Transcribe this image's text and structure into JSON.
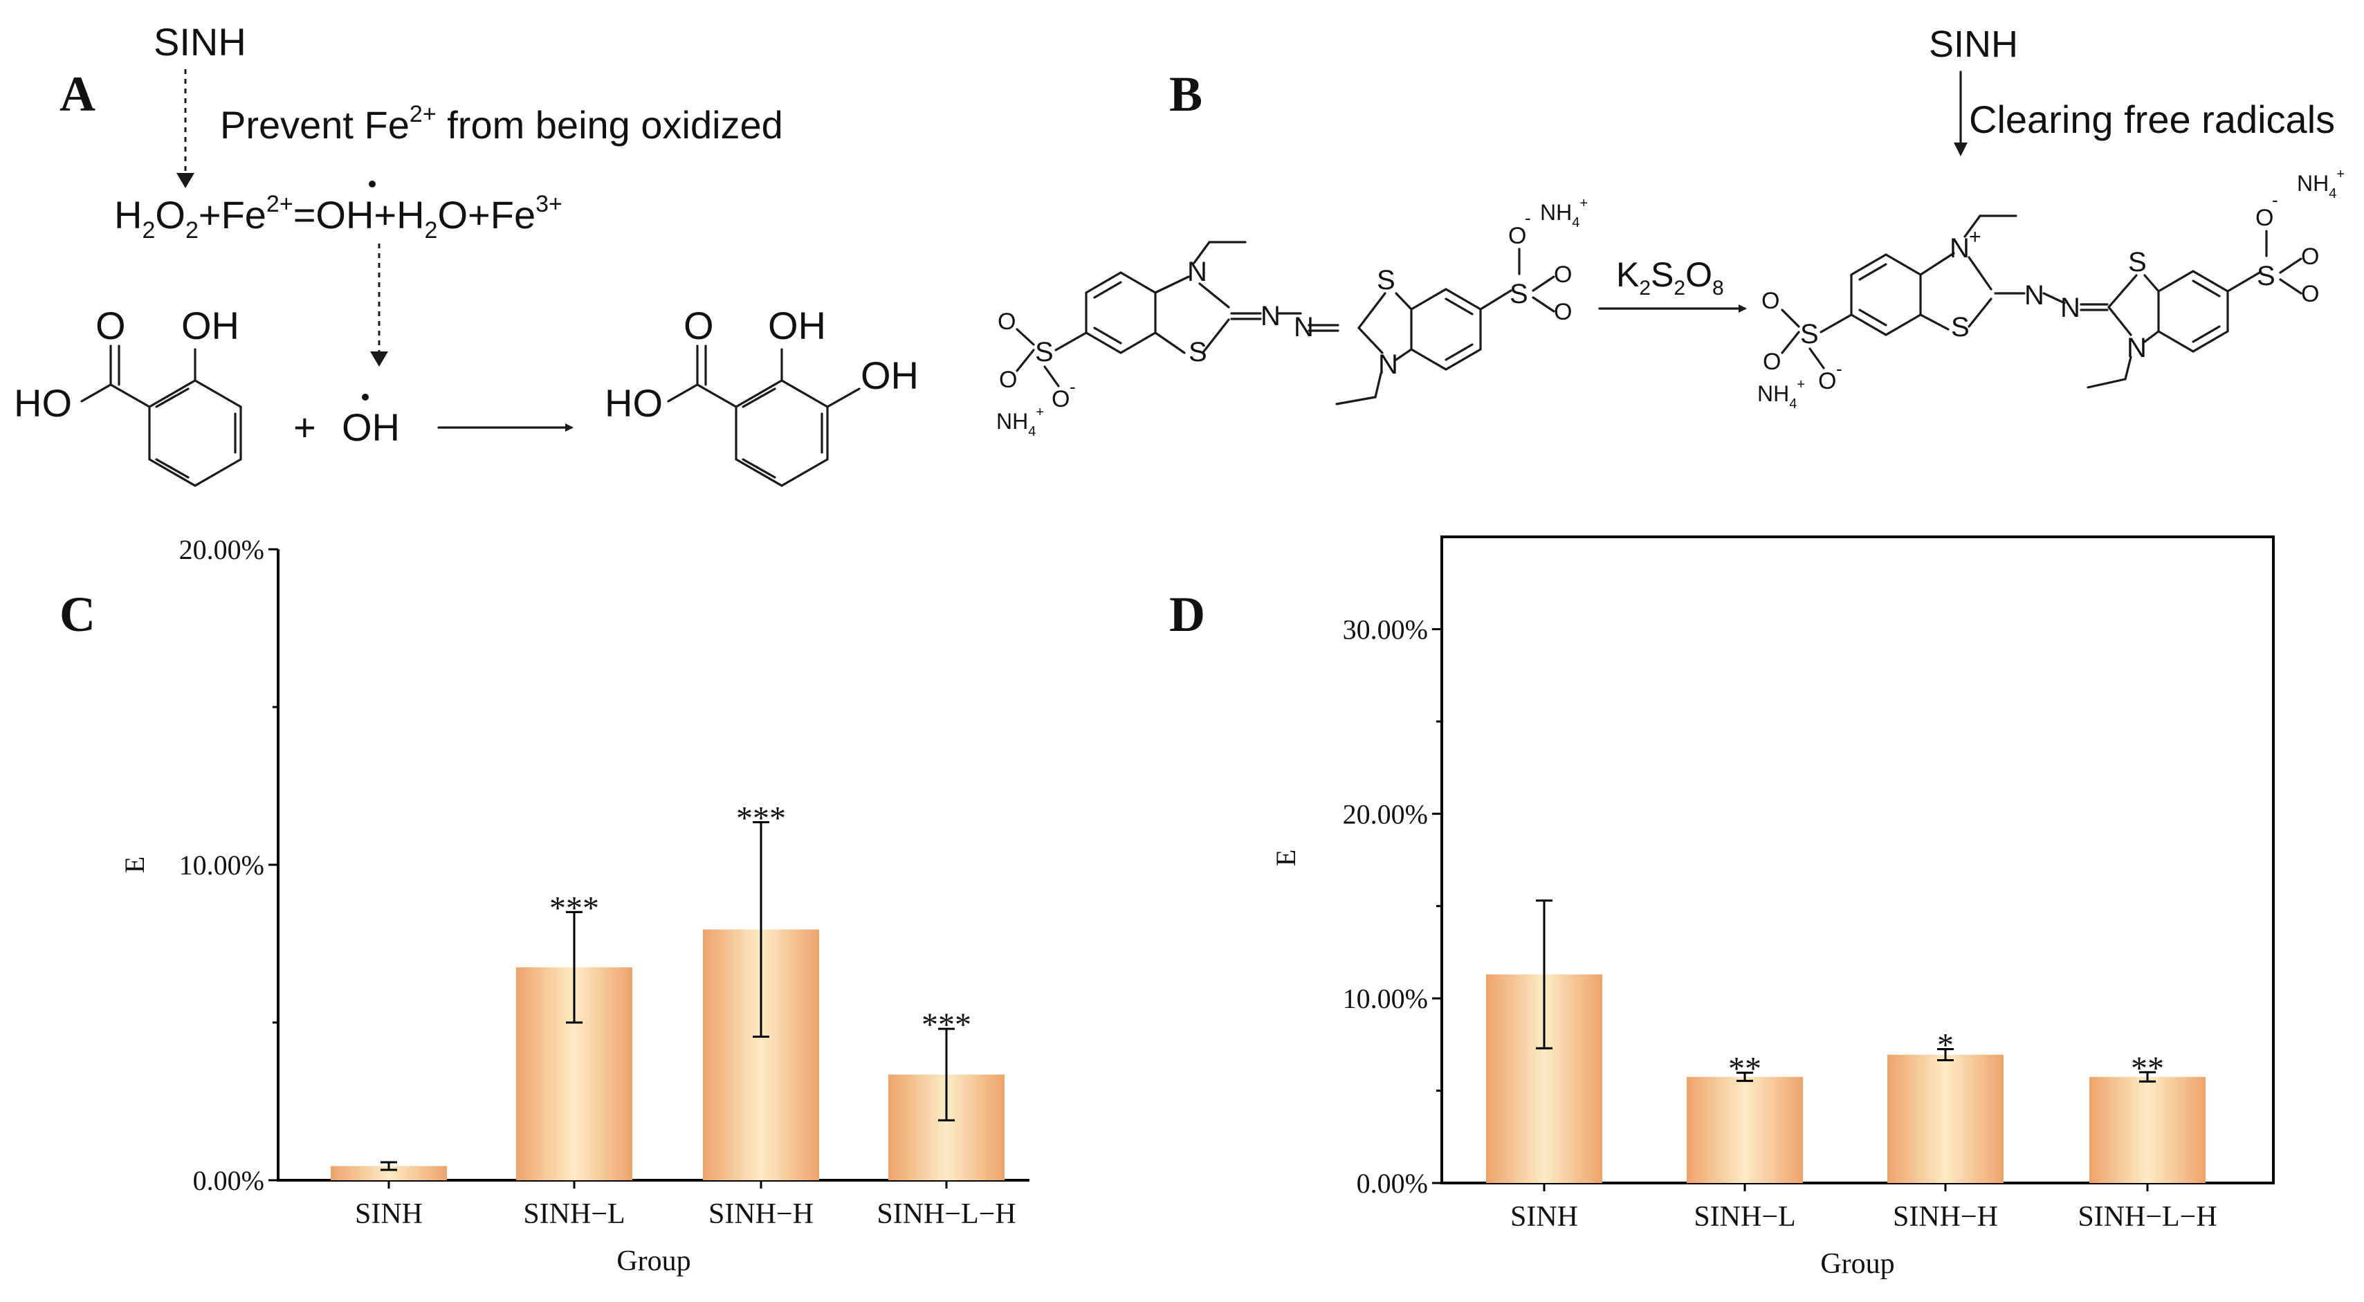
{
  "panels": {
    "A": {
      "label": "A",
      "reagent": "SINH",
      "note": "Prevent Fe",
      "note_sup": "2+",
      "note_tail": " from being oxidized",
      "reaction": {
        "h2o2": "H",
        "h2o2_s1": "2",
        "h2o2_o": "O",
        "h2o2_s2": "2",
        "plus_fe": "+Fe",
        "fe_sup": "2+",
        "eq_oh": "=OH",
        "plus_h2o": "+H",
        "h2o_s": "2",
        "h2o_o": "O",
        "plus_fe3": "+Fe",
        "fe3_sup": "3+"
      },
      "sal_o": "O",
      "sal_oh": "OH",
      "sal_ho": "HO",
      "plus": "+",
      "radical": "OH",
      "prod_o": "O",
      "prod_oh1": "OH",
      "prod_oh2": "OH",
      "prod_ho": "HO"
    },
    "B": {
      "label": "B",
      "reagent": "SINH",
      "note": "Clearing free radicals",
      "reagent_k": "K",
      "reagent_k_s": "2",
      "reagent_s": "S",
      "reagent_s_s": "2",
      "reagent_o": "O",
      "reagent_o_s": "8",
      "atoms": {
        "N": "N",
        "S": "S",
        "O": "O",
        "Ominus": "O",
        "minus": "-",
        "NH4": "NH",
        "NH4_s": "4",
        "NH4_plus": "+",
        "Nplus": "N",
        "plus": "+"
      }
    },
    "C": {
      "label": "C"
    },
    "D": {
      "label": "D"
    }
  },
  "colors": {
    "bar_edge": "#EEA36B",
    "bar_center": "#FCEBC4",
    "atom_red": "#E8202A"
  },
  "chart_data": [
    {
      "panel": "C",
      "type": "bar",
      "categories": [
        "SINH",
        "SINH−L",
        "SINH−H",
        "SINH−L−H"
      ],
      "values": [
        0.45,
        6.75,
        7.95,
        3.35
      ],
      "errors": [
        0.12,
        1.75,
        3.4,
        1.45
      ],
      "significance": [
        "",
        "***",
        "***",
        "***"
      ],
      "ylim": [
        0,
        20
      ],
      "yticks": [
        0,
        10,
        20
      ],
      "ytick_labels": [
        "0.00%",
        "10.00%",
        "20.00%"
      ],
      "xlabel": "Group",
      "ylabel": "E"
    },
    {
      "panel": "D",
      "type": "bar",
      "categories": [
        "SINH",
        "SINH−L",
        "SINH−H",
        "SINH−L−H"
      ],
      "values": [
        11.3,
        5.75,
        6.95,
        5.75
      ],
      "errors": [
        4.0,
        0.22,
        0.3,
        0.25
      ],
      "significance": [
        "",
        "**",
        "*",
        "**"
      ],
      "ylim": [
        0,
        35
      ],
      "yticks": [
        0,
        10,
        20,
        30
      ],
      "ytick_labels": [
        "0.00%",
        "10.00%",
        "20.00%",
        "30.00%"
      ],
      "xlabel": "Group",
      "ylabel": "E"
    }
  ]
}
